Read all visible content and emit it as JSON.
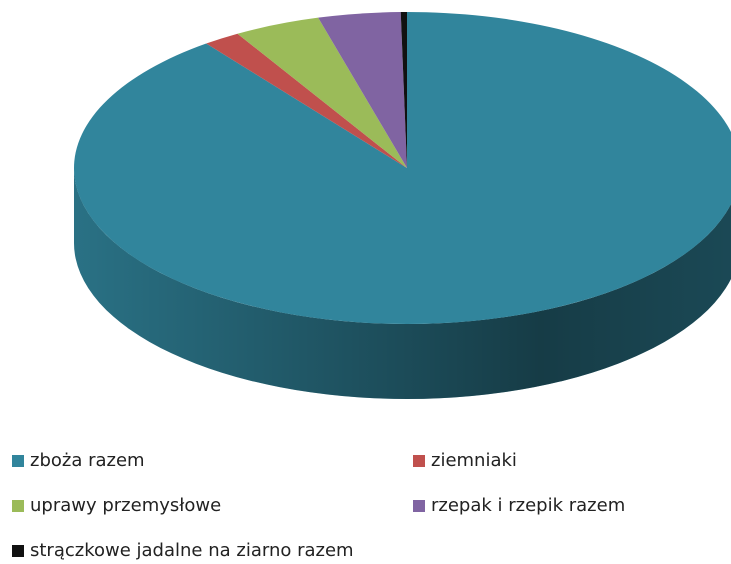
{
  "chart_data": {
    "type": "pie",
    "categories": [
      "zboża razem",
      "ziemniaki",
      "uprawy przemysłowe",
      "rzepak i rzepik razem",
      "strączkowe jadalne na ziarno razem"
    ],
    "values": [
      89.7,
      1.8,
      4.2,
      4.0,
      0.3
    ],
    "colors": [
      "#31859c",
      "#c0504d",
      "#9bbb59",
      "#8064a2",
      "#111111"
    ],
    "legend": "bottom"
  }
}
